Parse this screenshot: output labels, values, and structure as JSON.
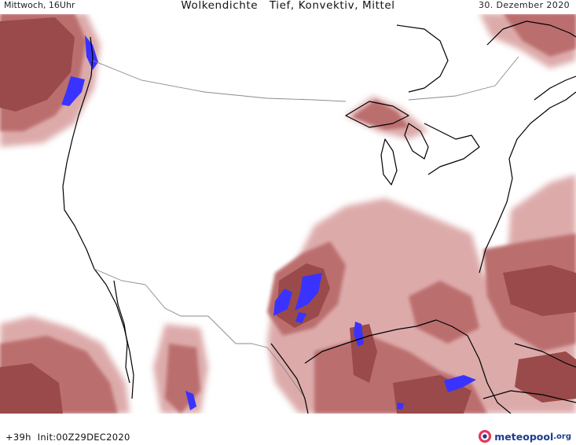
{
  "header": {
    "day_time": "Mittwoch, 16Uhr",
    "title": "Wolkendichte   Tief, Konvektiv, Mittel",
    "date": "30. Dezember 2020"
  },
  "footer": {
    "run_info": "+39h  Init:00Z29DEC2020",
    "logo_word": "meteopool",
    "logo_suffix": ".org"
  },
  "colors": {
    "cloud_light": "#ddaaaa",
    "cloud_medium": "#bb6e6e",
    "cloud_dark": "#9a4a4a",
    "convective": "#3a33ff",
    "coastline": "#000000",
    "border": "#8a8a8a",
    "logo_accent": "#e23a5a"
  },
  "map": {
    "region": "USA",
    "layers": [
      "cloud-density",
      "convective-clouds",
      "coastlines",
      "borders"
    ]
  }
}
